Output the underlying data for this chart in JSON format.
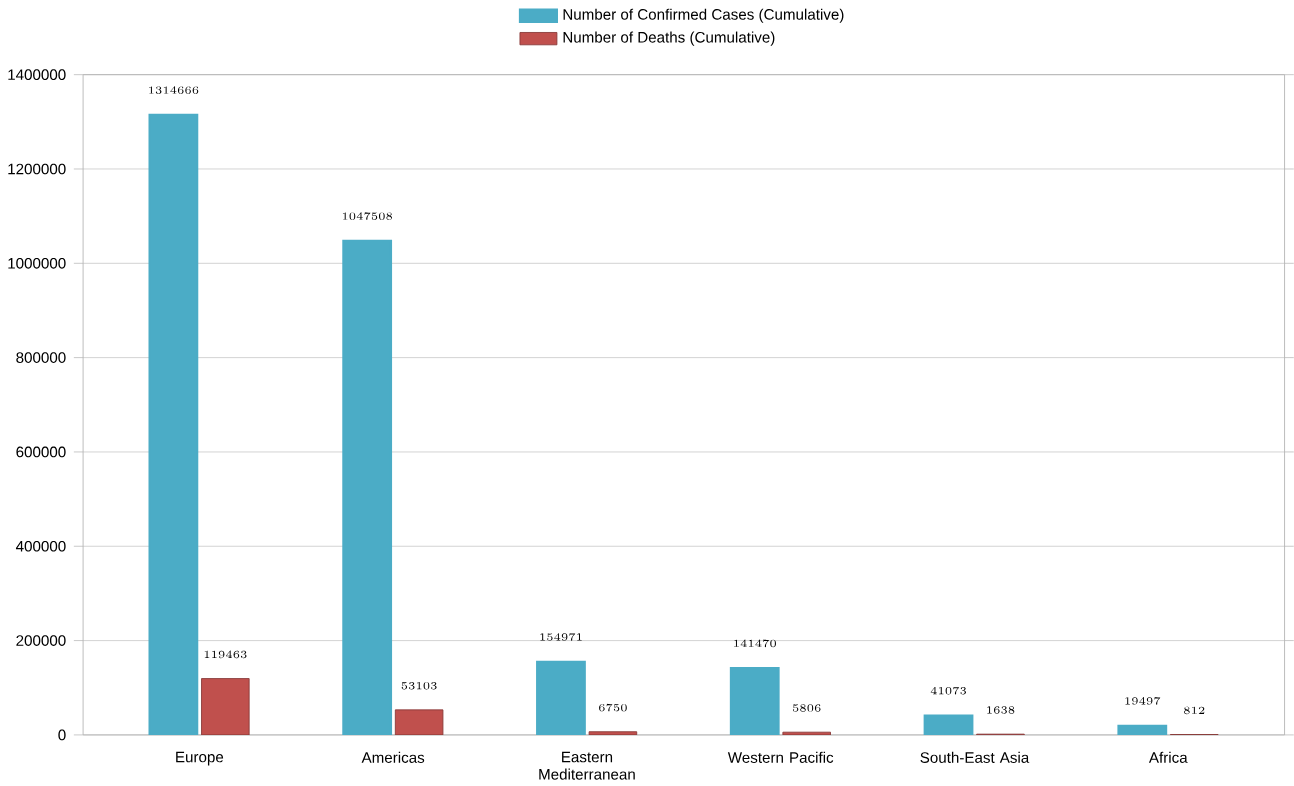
{
  "chart_data": {
    "type": "bar",
    "categories": [
      "Europe",
      "Americas",
      "Eastern Mediterranean",
      "Western Pacific",
      "South-East Asia",
      "Africa"
    ],
    "series": [
      {
        "name": "Number of Confirmed Cases (Cumulative)",
        "color": "#4bacc6",
        "values": [
          1314666,
          1047508,
          154971,
          141470,
          41073,
          19497
        ]
      },
      {
        "name": "Number of Deaths (Cumulative)",
        "color": "#c0504d",
        "values": [
          119463,
          53103,
          6750,
          5806,
          1638,
          812
        ]
      }
    ],
    "ylim": [
      0,
      1400000
    ],
    "yticks": [
      0,
      200000,
      400000,
      600000,
      800000,
      1000000,
      1200000,
      1400000
    ],
    "grid": "y",
    "legend": "top",
    "data_labels": true
  }
}
